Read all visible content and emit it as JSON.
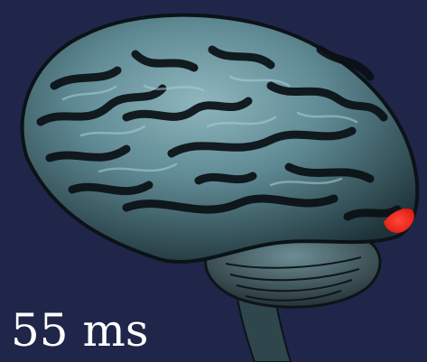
{
  "caption": {
    "time": "55 ms"
  },
  "colors": {
    "background": "#20264a",
    "brain_surface": "#5f8a94",
    "brain_shadow": "#0a1014",
    "activation": "#ff2a1f",
    "text": "#ffffff"
  },
  "highlight": {
    "region": "occipital-lobe",
    "color_name": "red"
  }
}
